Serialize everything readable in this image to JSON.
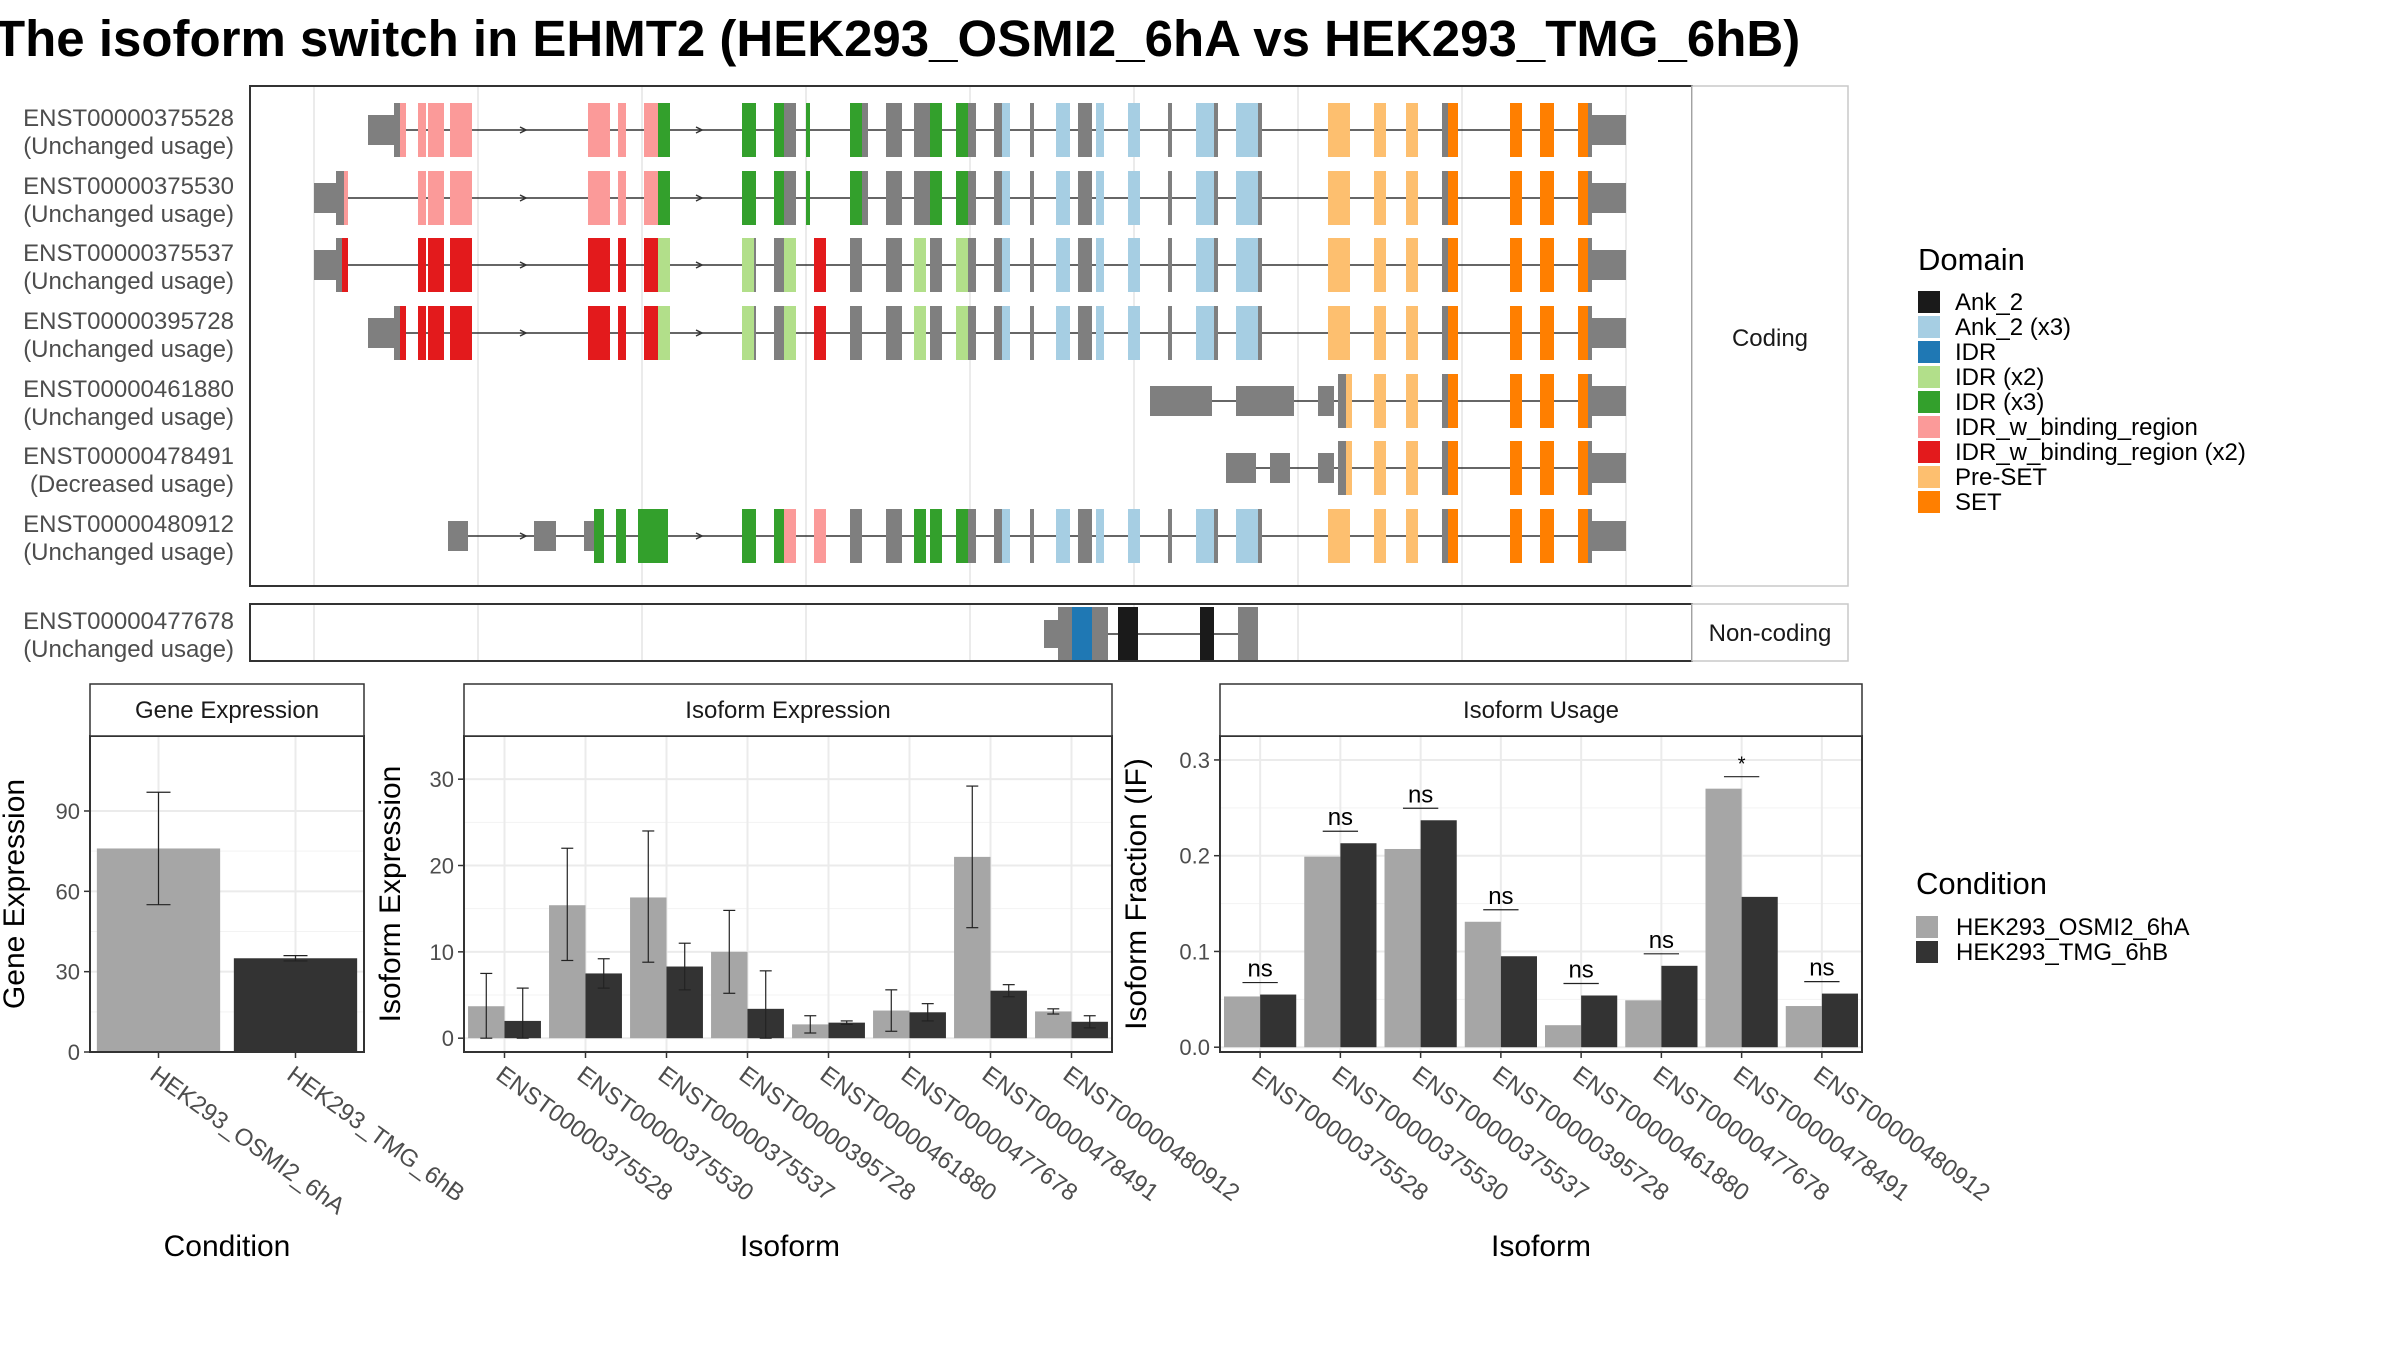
{
  "title": "The isoform switch in EHMT2 (HEK293_OSMI2_6hA vs HEK293_TMG_6hB)",
  "structure": {
    "coding_label": "Coding",
    "noncoding_label": "Non-coding",
    "isoforms": [
      {
        "id": "ENST00000375528",
        "usage": "(Unchanged usage)"
      },
      {
        "id": "ENST00000375530",
        "usage": "(Unchanged usage)"
      },
      {
        "id": "ENST00000375537",
        "usage": "(Unchanged usage)"
      },
      {
        "id": "ENST00000395728",
        "usage": "(Unchanged usage)"
      },
      {
        "id": "ENST00000461880",
        "usage": "(Unchanged usage)"
      },
      {
        "id": "ENST00000478491",
        "usage": "(Decreased usage)"
      },
      {
        "id": "ENST00000480912",
        "usage": "(Unchanged usage)"
      }
    ],
    "noncoding_isoforms": [
      {
        "id": "ENST00000477678",
        "usage": "(Unchanged usage)"
      }
    ]
  },
  "domain_legend": {
    "title": "Domain",
    "items": [
      {
        "label": "Ank_2",
        "color": "#1a1a1a"
      },
      {
        "label": "Ank_2 (x3)",
        "color": "#a6cee3"
      },
      {
        "label": "IDR",
        "color": "#1f78b4"
      },
      {
        "label": "IDR (x2)",
        "color": "#b2df8a"
      },
      {
        "label": "IDR (x3)",
        "color": "#33a02c"
      },
      {
        "label": "IDR_w_binding_region",
        "color": "#fb9a99"
      },
      {
        "label": "IDR_w_binding_region (x2)",
        "color": "#e31a1c"
      },
      {
        "label": "Pre-SET",
        "color": "#fdbf6f"
      },
      {
        "label": "SET",
        "color": "#ff7f00"
      }
    ]
  },
  "condition_legend": {
    "title": "Condition",
    "items": [
      {
        "label": "HEK293_OSMI2_6hA",
        "color": "#a6a6a6"
      },
      {
        "label": "HEK293_TMG_6hB",
        "color": "#333333"
      }
    ]
  },
  "colors": {
    "exon_grey": "#7f7f7f",
    "condition_a": "#a6a6a6",
    "condition_b": "#333333"
  },
  "chart_data": [
    {
      "type": "bar",
      "panel": "Gene Expression",
      "title": "Gene Expression",
      "xlabel": "Condition",
      "ylabel": "Gene Expression",
      "categories": [
        "HEK293_OSMI2_6hA",
        "HEK293_TMG_6hB"
      ],
      "values": [
        76,
        35
      ],
      "error_low": [
        55,
        34
      ],
      "error_high": [
        97,
        36
      ],
      "yticks": [
        0,
        30,
        60,
        90
      ],
      "ylim": [
        0,
        118
      ]
    },
    {
      "type": "bar",
      "panel": "Isoform Expression",
      "title": "Isoform Expression",
      "xlabel": "Isoform",
      "ylabel": "Isoform Expression",
      "categories": [
        "ENST00000375528",
        "ENST00000375530",
        "ENST00000375537",
        "ENST00000395728",
        "ENST00000461880",
        "ENST00000477678",
        "ENST00000478491",
        "ENST00000480912"
      ],
      "series": [
        {
          "name": "HEK293_OSMI2_6hA",
          "values": [
            3.7,
            15.4,
            16.3,
            10.0,
            1.6,
            3.2,
            21.0,
            3.1
          ],
          "error_low": [
            0.0,
            9.0,
            8.8,
            5.2,
            0.6,
            0.8,
            12.8,
            2.8
          ],
          "error_high": [
            7.5,
            22.0,
            24.0,
            14.8,
            2.6,
            5.6,
            29.2,
            3.4
          ]
        },
        {
          "name": "HEK293_TMG_6hB",
          "values": [
            2.0,
            7.5,
            8.3,
            3.4,
            1.8,
            3.0,
            5.5,
            1.9
          ],
          "error_low": [
            0.0,
            5.8,
            5.6,
            0.0,
            1.6,
            2.0,
            4.8,
            1.2
          ],
          "error_high": [
            5.8,
            9.2,
            11.0,
            7.8,
            2.0,
            4.0,
            6.2,
            2.6
          ]
        }
      ],
      "yticks": [
        0,
        10,
        20,
        30
      ],
      "ylim": [
        -1.6,
        35
      ]
    },
    {
      "type": "bar",
      "panel": "Isoform Usage",
      "title": "Isoform Usage",
      "xlabel": "Isoform",
      "ylabel": "Isoform Fraction (IF)",
      "categories": [
        "ENST00000375528",
        "ENST00000375530",
        "ENST00000375537",
        "ENST00000395728",
        "ENST00000461880",
        "ENST00000477678",
        "ENST00000478491",
        "ENST00000480912"
      ],
      "series": [
        {
          "name": "HEK293_OSMI2_6hA",
          "values": [
            0.053,
            0.199,
            0.207,
            0.131,
            0.023,
            0.049,
            0.27,
            0.043
          ]
        },
        {
          "name": "HEK293_TMG_6hB",
          "values": [
            0.055,
            0.213,
            0.237,
            0.095,
            0.054,
            0.085,
            0.157,
            0.056
          ]
        }
      ],
      "significance": [
        "ns",
        "ns",
        "ns",
        "ns",
        "ns",
        "ns",
        "*",
        "ns"
      ],
      "yticks": [
        0.0,
        0.1,
        0.2,
        0.3
      ],
      "ylim": [
        -0.005,
        0.325
      ]
    }
  ]
}
